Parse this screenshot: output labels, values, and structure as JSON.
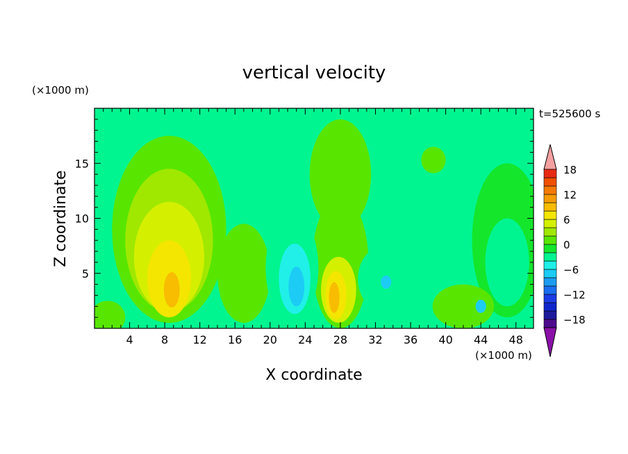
{
  "chart_data": {
    "type": "heatmap",
    "title": "vertical velocity",
    "xlabel": "X coordinate",
    "ylabel": "Z coordinate",
    "x_unit": "(×1000 m)",
    "y_unit": "(×1000 m)",
    "time_label": "t=525600 s",
    "xlim": [
      0,
      50
    ],
    "ylim": [
      0,
      20
    ],
    "x_ticks": [
      4,
      8,
      12,
      16,
      20,
      24,
      28,
      32,
      36,
      40,
      44,
      48
    ],
    "x_tick_labels": [
      "4",
      "8",
      "12",
      "16",
      "20",
      "24",
      "28",
      "32",
      "36",
      "40",
      "44",
      "48"
    ],
    "y_ticks": [
      5,
      10,
      15
    ],
    "y_tick_labels": [
      "5",
      "10",
      "15"
    ],
    "background_color": "#00f590",
    "colorbar": {
      "levels": [
        -20,
        -18,
        -16,
        -14,
        -12,
        -10,
        -8,
        -6,
        -4,
        -2,
        0,
        2,
        4,
        6,
        8,
        10,
        12,
        14,
        16,
        18,
        20
      ],
      "colors": [
        "#4d0a8c",
        "#1e1a9c",
        "#1026cc",
        "#1c3ce6",
        "#1a6ef0",
        "#1c9cf0",
        "#1cccf4",
        "#20f0e8",
        "#00f590",
        "#14e62c",
        "#58e600",
        "#a0e800",
        "#d4f000",
        "#f4e600",
        "#f8bc00",
        "#f49c00",
        "#f47a00",
        "#f05000",
        "#e82a14",
        "#f4a0a0"
      ],
      "under_color": "#8a10a8",
      "over_color": "#f4a0a0",
      "tick_values": [
        18,
        12,
        6,
        0,
        -6,
        -12,
        -18
      ],
      "tick_labels": [
        "18",
        "12",
        "6",
        "0",
        "−6",
        "−12",
        "−18"
      ]
    },
    "features": [
      {
        "type": "blob",
        "x": 8.5,
        "z": 9.0,
        "rx": 6.5,
        "rz": 8.5,
        "value": 1
      },
      {
        "type": "blob",
        "x": 8.5,
        "z": 8.0,
        "rx": 5.0,
        "rz": 6.5,
        "value": 3
      },
      {
        "type": "blob",
        "x": 8.5,
        "z": 6.5,
        "rx": 4.0,
        "rz": 5.0,
        "value": 5
      },
      {
        "type": "blob",
        "x": 8.5,
        "z": 4.5,
        "rx": 2.5,
        "rz": 3.5,
        "value": 7
      },
      {
        "type": "blob",
        "x": 8.8,
        "z": 3.5,
        "rx": 0.9,
        "rz": 1.6,
        "value": 9
      },
      {
        "type": "blob",
        "x": 17.0,
        "z": 5.0,
        "rx": 3.0,
        "rz": 4.5,
        "value": 1
      },
      {
        "type": "blob",
        "x": 28.0,
        "z": 14.0,
        "rx": 3.5,
        "rz": 5.0,
        "value": 1
      },
      {
        "type": "blob",
        "x": 28.0,
        "z": 6.0,
        "rx": 3.2,
        "rz": 6.0,
        "value": 1
      },
      {
        "type": "blob",
        "x": 27.8,
        "z": 3.5,
        "rx": 2.0,
        "rz": 3.0,
        "value": 4
      },
      {
        "type": "blob",
        "x": 27.5,
        "z": 3.0,
        "rx": 1.2,
        "rz": 2.2,
        "value": 6
      },
      {
        "type": "blob",
        "x": 27.3,
        "z": 2.8,
        "rx": 0.6,
        "rz": 1.4,
        "value": 8
      },
      {
        "type": "blob",
        "x": 22.5,
        "z": 5.5,
        "rx": 3.0,
        "rz": 5.0,
        "value": -3
      },
      {
        "type": "blob",
        "x": 22.8,
        "z": 4.5,
        "rx": 1.8,
        "rz": 3.2,
        "value": -5
      },
      {
        "type": "blob",
        "x": 23.0,
        "z": 3.8,
        "rx": 0.9,
        "rz": 1.8,
        "value": -7
      },
      {
        "type": "blob",
        "x": 33.0,
        "z": 4.5,
        "rx": 3.0,
        "rz": 3.0,
        "value": -3
      },
      {
        "type": "blob",
        "x": 33.2,
        "z": 4.2,
        "rx": 0.6,
        "rz": 0.6,
        "value": -7
      },
      {
        "type": "blob",
        "x": 38.6,
        "z": 15.3,
        "rx": 1.4,
        "rz": 1.2,
        "value": 1
      },
      {
        "type": "blob",
        "x": 47.0,
        "z": 8.0,
        "rx": 4.0,
        "rz": 7.0,
        "value": -2
      },
      {
        "type": "blob",
        "x": 47.0,
        "z": 6.0,
        "rx": 2.5,
        "rz": 4.0,
        "value": -4
      },
      {
        "type": "blob",
        "x": 42.0,
        "z": 2.0,
        "rx": 3.5,
        "rz": 2.0,
        "value": 1
      },
      {
        "type": "blob",
        "x": 1.5,
        "z": 1.0,
        "rx": 2.0,
        "rz": 1.5,
        "value": 1
      },
      {
        "type": "blob",
        "x": 44.0,
        "z": 2.0,
        "rx": 0.6,
        "rz": 0.6,
        "value": -7
      }
    ]
  }
}
